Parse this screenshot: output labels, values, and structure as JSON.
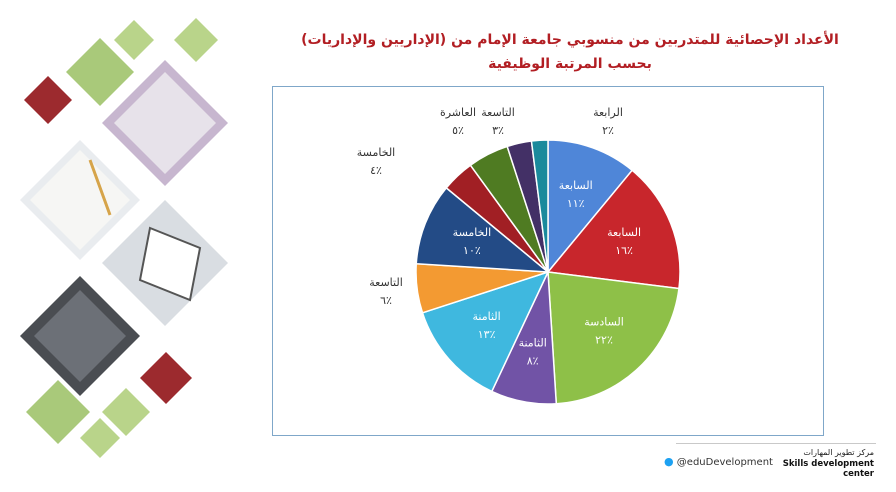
{
  "title_line1": "الأعداد الإحصائية للمتدربين من منسوبي جامعة الإمام من (الإداريين والإداريات)",
  "title_line2": "بحسب المرتبة الوظيفية",
  "chart_data": {
    "type": "pie",
    "title": "الأعداد الإحصائية للمتدربين من منسوبي جامعة الإمام من (الإداريين والإداريات) بحسب المرتبة الوظيفية",
    "slices": [
      {
        "label": "السابعة",
        "value_label": "١١٪",
        "value": 11,
        "color": "#4f86d8"
      },
      {
        "label": "السابعة",
        "value_label": "١٦٪",
        "value": 16,
        "color": "#c8262c"
      },
      {
        "label": "السادسة",
        "value_label": "٢٢٪",
        "value": 22,
        "color": "#8ec048"
      },
      {
        "label": "الثامنة",
        "value_label": "٨٪",
        "value": 8,
        "color": "#7153a6"
      },
      {
        "label": "الثامنة",
        "value_label": "١٣٪",
        "value": 13,
        "color": "#3fb8df"
      },
      {
        "label": "التاسعة",
        "value_label": "٦٪",
        "value": 6,
        "color": "#f39a32"
      },
      {
        "label": "الخامسة",
        "value_label": "١٠٪",
        "value": 10,
        "color": "#234b86"
      },
      {
        "label": "الخامسة",
        "value_label": "٤٪",
        "value": 4,
        "color": "#a11f24"
      },
      {
        "label": "العاشرة",
        "value_label": "٥٪",
        "value": 5,
        "color": "#4f7b22"
      },
      {
        "label": "التاسعة",
        "value_label": "٣٪",
        "value": 3,
        "color": "#433066"
      },
      {
        "label": "الرابعة",
        "value_label": "٢٪",
        "value": 2,
        "color": "#1a8a9c"
      }
    ]
  },
  "footer": {
    "twitter_handle": "@eduDevelopment",
    "center_name_ar": "مركز تطوير المهارات",
    "center_name_en": "Skills development center"
  },
  "colors": {
    "title": "#b21e23",
    "diamond_green": "#a9c97a",
    "diamond_red": "#9c2a2e",
    "frame": "#7fa7c9"
  }
}
